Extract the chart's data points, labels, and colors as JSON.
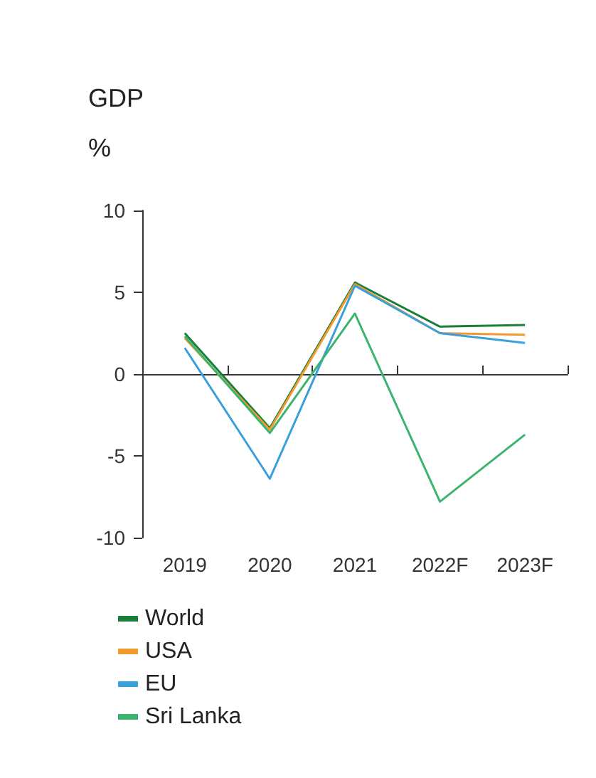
{
  "chart_data": {
    "type": "line",
    "title": "GDP",
    "subtitle": "%",
    "categories": [
      "2019",
      "2020",
      "2021",
      "2022F",
      "2023F"
    ],
    "series": [
      {
        "name": "World",
        "color": "#1a7f3c",
        "values": [
          2.5,
          -3.3,
          5.6,
          2.9,
          3.0
        ]
      },
      {
        "name": "USA",
        "color": "#f39a2e",
        "values": [
          2.2,
          -3.4,
          5.5,
          2.5,
          2.4
        ]
      },
      {
        "name": "EU",
        "color": "#3aa0dc",
        "values": [
          1.6,
          -6.4,
          5.4,
          2.5,
          1.9
        ]
      },
      {
        "name": "Sri Lanka",
        "color": "#3cb36e",
        "values": [
          2.3,
          -3.6,
          3.7,
          -7.8,
          -3.7
        ]
      }
    ],
    "ylim": [
      -10,
      10
    ],
    "yticks": [
      -10,
      -5,
      0,
      5,
      10
    ],
    "legend": "bottom",
    "marker": "none",
    "line_style": "solid"
  }
}
